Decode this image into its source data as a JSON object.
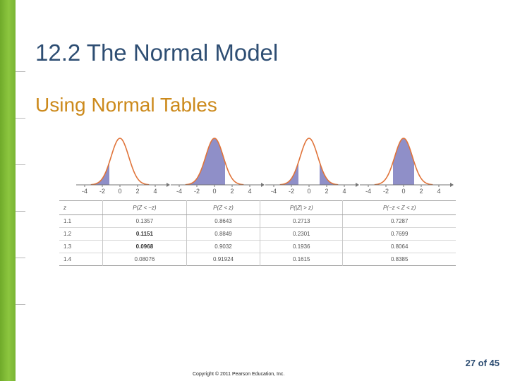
{
  "slide": {
    "title": "12.2 The Normal Model",
    "subtitle": "Using Normal Tables",
    "page_number": "27 of 45",
    "copyright": "Copyright © 2011 Pearson Education, Inc."
  },
  "colors": {
    "title": "#2e4e73",
    "subtitle": "#cc8a1c",
    "left_bar": "#8cc63f",
    "curve": "#e0743a",
    "shade": "#8f8fc8"
  },
  "figure": {
    "tick_labels": [
      "-4",
      "-2",
      "0",
      "2",
      "4"
    ],
    "panels": [
      {
        "shaded": "left-tail"
      },
      {
        "shaded": "below-z"
      },
      {
        "shaded": "both-tails"
      },
      {
        "shaded": "center"
      }
    ]
  },
  "table": {
    "headers": [
      "z",
      "P(Z < −z)",
      "P(Z < z)",
      "P(|Z| > z)",
      "P(−z < Z < z)"
    ],
    "rows": [
      [
        "1.1",
        "0.1357",
        "0.8643",
        "0.2713",
        "0.7287"
      ],
      [
        "1.2",
        "0.1151",
        "0.8849",
        "0.2301",
        "0.7699"
      ],
      [
        "1.3",
        "0.0968",
        "0.9032",
        "0.1936",
        "0.8064"
      ],
      [
        "1.4",
        "0.08076",
        "0.91924",
        "0.1615",
        "0.8385"
      ]
    ]
  }
}
